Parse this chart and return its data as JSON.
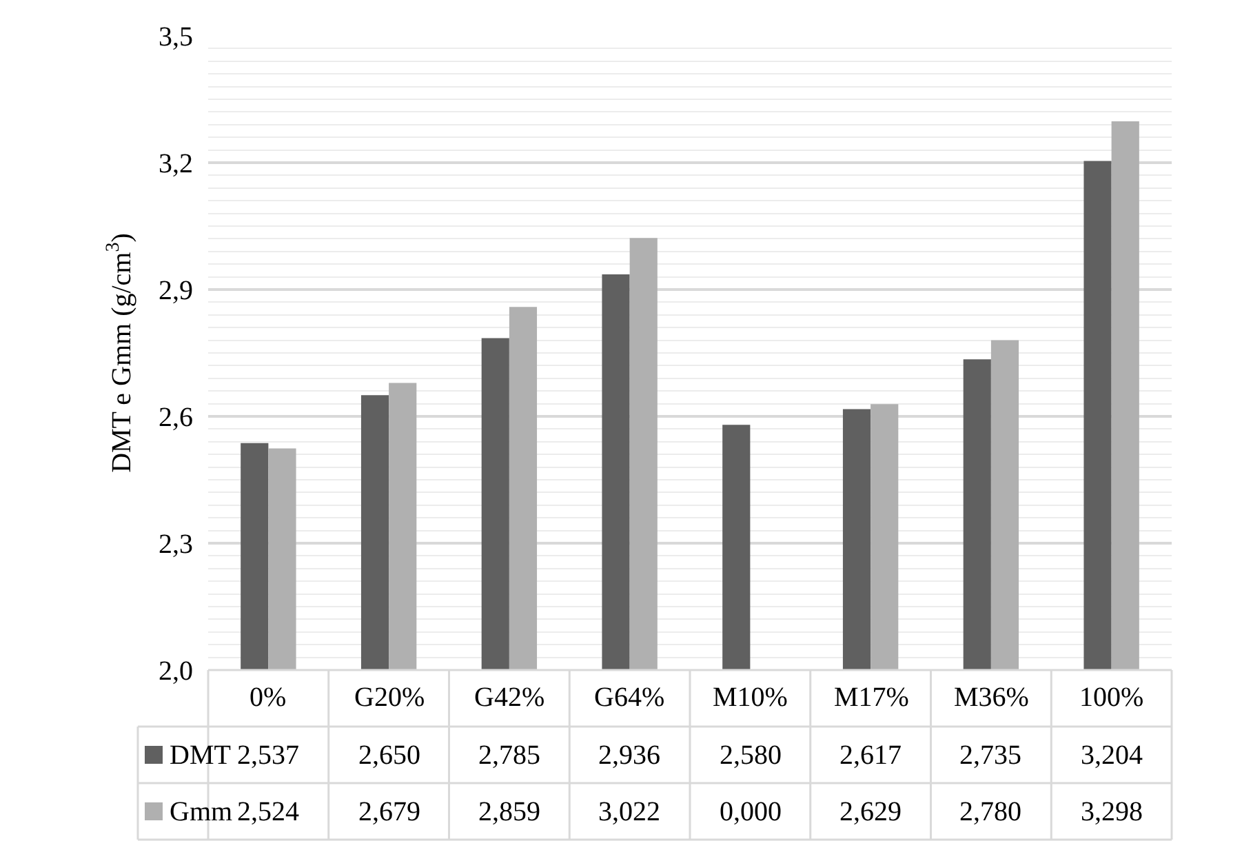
{
  "chart_data": {
    "type": "bar",
    "ylabel": "DMT e Gmm (g/cm$^{3}$)",
    "categories": [
      "0%",
      "G20%",
      "G42%",
      "G64%",
      "M10%",
      "M17%",
      "M36%",
      "100%"
    ],
    "series": [
      {
        "name": "DMT",
        "color": "#606060",
        "values": [
          2.537,
          2.65,
          2.785,
          2.936,
          2.58,
          2.617,
          2.735,
          3.204
        ],
        "value_labels": [
          "2,537",
          "2,650",
          "2,785",
          "2,936",
          "2,580",
          "2,617",
          "2,735",
          "3,204"
        ]
      },
      {
        "name": "Gmm",
        "color": "#b0b0b0",
        "values": [
          2.524,
          2.679,
          2.859,
          3.022,
          null,
          2.629,
          2.78,
          3.298
        ],
        "value_labels": [
          "2,524",
          "2,679",
          "2,859",
          "3,022",
          "0,000",
          "2,629",
          "2,780",
          "3,298"
        ]
      }
    ],
    "ylim": [
      2.0,
      3.5
    ],
    "yticks": [
      {
        "value": 2.0,
        "label": "2,0"
      },
      {
        "value": 2.3,
        "label": "2,3"
      },
      {
        "value": 2.6,
        "label": "2,6"
      },
      {
        "value": 2.9,
        "label": "2,9"
      },
      {
        "value": 3.2,
        "label": "3,2"
      },
      {
        "value": 3.5,
        "label": "3,5"
      }
    ],
    "grid": "y",
    "legend": "bottom"
  }
}
